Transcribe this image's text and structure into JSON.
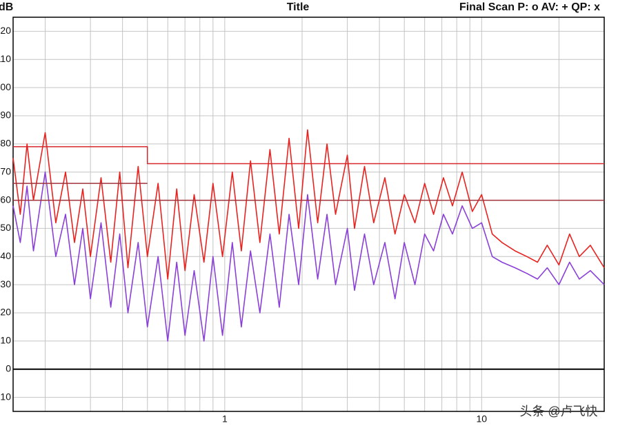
{
  "chart_data": {
    "type": "line",
    "title": "Title",
    "y_label": "dB",
    "status": "Final Scan P: o  AV: +  QP: x",
    "watermark": "头条 @卢飞快",
    "x_scale": "log",
    "grid": true,
    "xlim": [
      0.15,
      30
    ],
    "xticks": [
      1,
      10
    ],
    "x_grid": [
      0.2,
      0.3,
      0.4,
      0.5,
      0.6,
      0.7,
      0.8,
      0.9,
      2,
      3,
      4,
      5,
      6,
      7,
      8,
      9,
      20,
      30
    ],
    "ylim": [
      -15,
      125
    ],
    "yticks": [
      -10,
      0,
      10,
      20,
      30,
      40,
      50,
      60,
      70,
      80,
      90,
      100,
      110,
      120
    ],
    "x": [
      0.15,
      0.16,
      0.17,
      0.18,
      0.2,
      0.22,
      0.24,
      0.26,
      0.28,
      0.3,
      0.33,
      0.36,
      0.39,
      0.42,
      0.46,
      0.5,
      0.55,
      0.6,
      0.65,
      0.7,
      0.76,
      0.83,
      0.9,
      0.98,
      1.07,
      1.16,
      1.26,
      1.37,
      1.5,
      1.63,
      1.78,
      1.94,
      2.1,
      2.3,
      2.5,
      2.7,
      3.0,
      3.2,
      3.5,
      3.8,
      4.2,
      4.6,
      5.0,
      5.5,
      6.0,
      6.5,
      7.1,
      7.7,
      8.4,
      9.2,
      10,
      11,
      12,
      13.5,
      15,
      16.5,
      18,
      20,
      22,
      24,
      26.5,
      30
    ],
    "series": [
      {
        "color": "#e8221e",
        "values": [
          75,
          55,
          80,
          60,
          84,
          52,
          70,
          45,
          64,
          40,
          68,
          38,
          70,
          36,
          72,
          40,
          66,
          32,
          64,
          35,
          62,
          38,
          66,
          40,
          70,
          42,
          74,
          45,
          78,
          48,
          82,
          50,
          85,
          52,
          80,
          55,
          76,
          50,
          72,
          52,
          68,
          48,
          62,
          52,
          66,
          55,
          68,
          58,
          70,
          56,
          62,
          48,
          45,
          42,
          40,
          38,
          44,
          37,
          48,
          40,
          44,
          36
        ]
      },
      {
        "color": "#8a3fd8",
        "values": [
          58,
          45,
          65,
          42,
          70,
          40,
          55,
          30,
          50,
          25,
          52,
          22,
          48,
          20,
          45,
          15,
          40,
          10,
          38,
          12,
          35,
          10,
          40,
          12,
          45,
          15,
          42,
          20,
          48,
          22,
          55,
          30,
          62,
          32,
          55,
          30,
          50,
          28,
          48,
          30,
          45,
          25,
          45,
          30,
          48,
          42,
          55,
          48,
          58,
          50,
          52,
          40,
          38,
          36,
          34,
          32,
          36,
          30,
          38,
          32,
          35,
          30
        ]
      }
    ],
    "limit_lines": [
      {
        "color": "#d8262a",
        "x": [
          0.15,
          0.5,
          0.5,
          30
        ],
        "values": [
          79,
          79,
          73,
          73
        ]
      },
      {
        "color": "#a0323a",
        "x": [
          0.15,
          0.5
        ],
        "values": [
          66,
          66
        ]
      },
      {
        "color": "#a0323a",
        "x": [
          0.15,
          30
        ],
        "values": [
          60,
          60
        ]
      }
    ]
  }
}
